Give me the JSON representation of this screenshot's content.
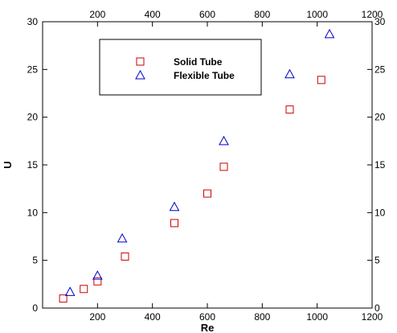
{
  "chart_data": {
    "type": "scatter",
    "title": "",
    "xlabel": "Re",
    "ylabel": "U",
    "xlim": [
      0,
      1200
    ],
    "ylim": [
      0,
      30
    ],
    "x_ticks": [
      200,
      400,
      600,
      800,
      1000,
      1200
    ],
    "y_ticks": [
      0,
      5,
      10,
      15,
      20,
      25,
      30
    ],
    "grid": false,
    "legend_position": "top-left",
    "series": [
      {
        "name": "Solid Tube",
        "marker": "square",
        "color": "#cc0000",
        "x": [
          75,
          150,
          200,
          300,
          480,
          600,
          660,
          900,
          1015
        ],
        "y": [
          1.0,
          2.0,
          2.8,
          5.4,
          8.9,
          12.0,
          14.8,
          20.8,
          23.9
        ]
      },
      {
        "name": "Flexible Tube",
        "marker": "triangle",
        "color": "#0000cc",
        "x": [
          100,
          200,
          290,
          480,
          660,
          900,
          1045
        ],
        "y": [
          1.7,
          3.4,
          7.3,
          10.6,
          17.5,
          24.5,
          28.7
        ]
      }
    ]
  }
}
